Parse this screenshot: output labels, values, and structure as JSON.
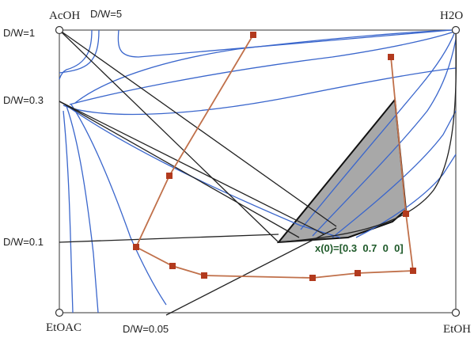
{
  "corners": {
    "top_left": "AcOH",
    "top_right": "H2O",
    "bottom_left": "EtOAC",
    "bottom_right": "EtOH"
  },
  "dw_labels": {
    "top": "D/W=5",
    "left_1": "D/W=1",
    "left_2": "D/W=0.3",
    "left_3": "D/W=0.1",
    "bottom": "D/W=0.05"
  },
  "annotation": "x(0)=[0.3  0.7  0  0]",
  "colors": {
    "frame": "#555555",
    "distillation_boundary": "#222222",
    "residue_curves": "#3a66cc",
    "trajectory": "#c0704a",
    "trajectory_marker": "#b23a1e",
    "feasible_region": "#a8a8a8",
    "annotation": "#1f5a2a"
  }
}
